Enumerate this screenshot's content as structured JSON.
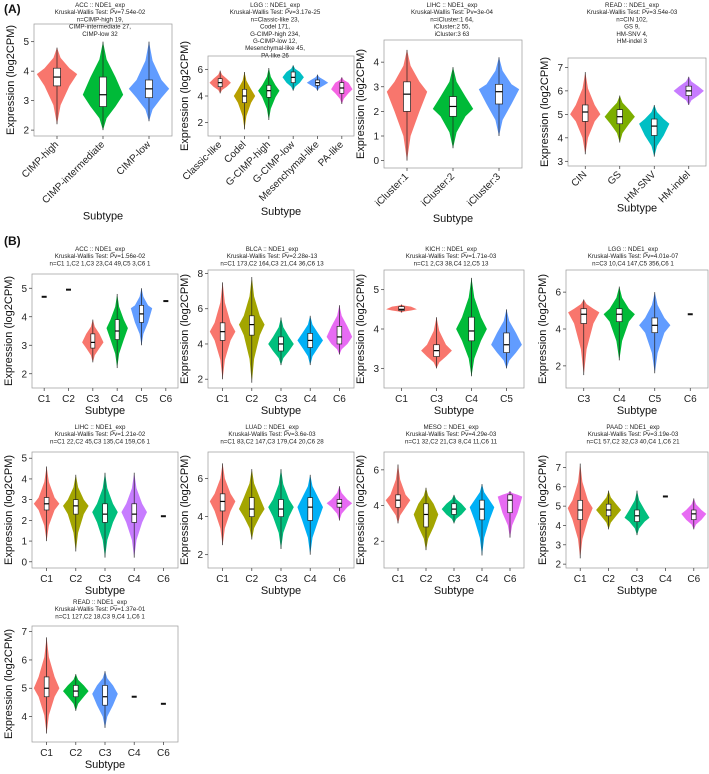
{
  "figure": {
    "panel_labels": [
      "(A)",
      "(B)"
    ],
    "colors": [
      "#F8766D",
      "#A3A500",
      "#00BF7D",
      "#00B0F6",
      "#E76BF3",
      "#FF7F50",
      "#00BFC4"
    ]
  },
  "chart_data": [
    {
      "type": "violin",
      "panel": "A",
      "title_lines": [
        "ACC :: NDE1_exp",
        "Kruskal-Wallis Test: Pv=7.54e-02",
        "n=CIMP-high 19,",
        "CIMP-intermediate 27,",
        "CIMP-low 32"
      ],
      "xlabel": "Subtype",
      "ylabel": "Expression (log2CPM)",
      "ylim": [
        1.8,
        5.6
      ],
      "yticks": [
        2,
        3,
        4,
        5
      ],
      "rotate_x": true,
      "series": [
        {
          "name": "CIMP-high",
          "color": "#F8766D",
          "min": 2.2,
          "q1": 3.5,
          "median": 3.8,
          "q3": 4.1,
          "max": 4.8,
          "mode": 3.9
        },
        {
          "name": "CIMP-intermediate",
          "color": "#00BA38",
          "min": 2.0,
          "q1": 2.8,
          "median": 3.2,
          "q3": 3.8,
          "max": 5.0,
          "mode": 3.2
        },
        {
          "name": "CIMP-low",
          "color": "#619CFF",
          "min": 2.3,
          "q1": 3.1,
          "median": 3.4,
          "q3": 3.7,
          "max": 5.0,
          "mode": 3.4
        }
      ]
    },
    {
      "type": "violin",
      "panel": "A",
      "title_lines": [
        "LGG :: NDE1_exp",
        "Kruskal-Wallis Test: Pv=3.17e-25",
        "n=Classic-like 23,",
        "Codel 171,",
        "G-CIMP-high 234,",
        "G-CIMP-low 12,",
        "Mesenchymal-like 45,",
        "PA-like 26"
      ],
      "xlabel": "Subtype",
      "ylabel": "Expression (log2CPM)",
      "ylim": [
        1.0,
        7.0
      ],
      "yticks": [
        2,
        4,
        6
      ],
      "rotate_x": true,
      "series": [
        {
          "name": "Classic-like",
          "color": "#F8766D",
          "min": 4.2,
          "q1": 4.7,
          "median": 5.0,
          "q3": 5.3,
          "max": 5.9,
          "mode": 5.0
        },
        {
          "name": "Codel",
          "color": "#B79F00",
          "min": 1.5,
          "q1": 3.5,
          "median": 4.0,
          "q3": 4.5,
          "max": 5.8,
          "mode": 4.0
        },
        {
          "name": "G-CIMP-high",
          "color": "#00BA38",
          "min": 2.2,
          "q1": 3.9,
          "median": 4.4,
          "q3": 4.8,
          "max": 6.1,
          "mode": 4.4
        },
        {
          "name": "G-CIMP-low",
          "color": "#00BFC4",
          "min": 4.4,
          "q1": 5.0,
          "median": 5.4,
          "q3": 5.8,
          "max": 6.3,
          "mode": 5.4
        },
        {
          "name": "Mesenchymal-like",
          "color": "#619CFF",
          "min": 4.4,
          "q1": 4.8,
          "median": 5.0,
          "q3": 5.2,
          "max": 5.6,
          "mode": 5.0
        },
        {
          "name": "PA-like",
          "color": "#F564E3",
          "min": 3.4,
          "q1": 4.2,
          "median": 4.6,
          "q3": 5.0,
          "max": 5.4,
          "mode": 4.5
        }
      ]
    },
    {
      "type": "violin",
      "panel": "A",
      "title_lines": [
        "LIHC :: NDE1_exp",
        "Kruskal-Wallis Test: Pv=3e-04",
        "n=iCluster:1 64,",
        "iCluster:2 55,",
        "iCluster:3 63"
      ],
      "xlabel": "Subtype",
      "ylabel": "Expression (log2CPM)",
      "ylim": [
        -0.3,
        4.9
      ],
      "yticks": [
        0,
        1,
        2,
        3,
        4
      ],
      "rotate_x": true,
      "series": [
        {
          "name": "iCluster:1",
          "color": "#F8766D",
          "min": 0.0,
          "q1": 2.0,
          "median": 2.7,
          "q3": 3.2,
          "max": 4.5,
          "mode": 2.8
        },
        {
          "name": "iCluster:2",
          "color": "#00BA38",
          "min": 0.5,
          "q1": 1.8,
          "median": 2.2,
          "q3": 2.6,
          "max": 3.8,
          "mode": 2.1
        },
        {
          "name": "iCluster:3",
          "color": "#619CFF",
          "min": 1.0,
          "q1": 2.3,
          "median": 2.8,
          "q3": 3.1,
          "max": 4.2,
          "mode": 2.9
        }
      ]
    },
    {
      "type": "violin",
      "panel": "A",
      "title_lines": [
        "READ :: NDE1_exp",
        "Kruskal-Wallis Test: Pv=3.54e-03",
        "n=CIN 102,",
        "GS 9,",
        "HM-SNV 4,",
        "HM-indel 3"
      ],
      "xlabel": "Subtype",
      "ylabel": "Expression (log2CPM)",
      "ylim": [
        2.8,
        7.4
      ],
      "yticks": [
        3,
        4,
        5,
        6,
        7
      ],
      "rotate_x": true,
      "series": [
        {
          "name": "CIN",
          "color": "#F8766D",
          "min": 3.3,
          "q1": 4.7,
          "median": 5.1,
          "q3": 5.4,
          "max": 6.8,
          "mode": 5.0
        },
        {
          "name": "GS",
          "color": "#7CAE00",
          "min": 3.8,
          "q1": 4.6,
          "median": 4.9,
          "q3": 5.2,
          "max": 5.8,
          "mode": 4.9
        },
        {
          "name": "HM-SNV",
          "color": "#00BFC4",
          "min": 3.2,
          "q1": 4.1,
          "median": 4.5,
          "q3": 4.8,
          "max": 5.4,
          "mode": 4.6
        },
        {
          "name": "HM-indel",
          "color": "#C77CFF",
          "min": 5.4,
          "q1": 5.8,
          "median": 6.0,
          "q3": 6.2,
          "max": 6.6,
          "mode": 6.0
        }
      ]
    },
    {
      "type": "violin",
      "panel": "B",
      "title_lines": [
        "ACC :: NDE1_exp",
        "Kruskal-Wallis Test: Pv=1.56e-02",
        "n=C1 1,C2 1,C3 23,C4 49,C5 3,C6 1"
      ],
      "xlabel": "Subtype",
      "ylabel": "Expression (log2CPM)",
      "ylim": [
        1.5,
        5.5
      ],
      "yticks": [
        2,
        3,
        4,
        5
      ],
      "rotate_x": false,
      "series": [
        {
          "name": "C1",
          "color": "#F8766D",
          "single": 4.7
        },
        {
          "name": "C2",
          "color": "#B79F00",
          "single": 4.95
        },
        {
          "name": "C3",
          "color": "#F8766D",
          "min": 2.4,
          "q1": 2.9,
          "median": 3.1,
          "q3": 3.4,
          "max": 3.9,
          "mode": 3.1
        },
        {
          "name": "C4",
          "color": "#00BA38",
          "min": 2.2,
          "q1": 3.2,
          "median": 3.5,
          "q3": 3.9,
          "max": 4.8,
          "mode": 3.6
        },
        {
          "name": "C5",
          "color": "#619CFF",
          "min": 3.0,
          "q1": 3.8,
          "median": 4.1,
          "q3": 4.4,
          "max": 5.0,
          "mode": 4.3
        },
        {
          "name": "C6",
          "color": "#F564E3",
          "single": 4.55
        }
      ]
    },
    {
      "type": "violin",
      "panel": "B",
      "title_lines": [
        "BLCA :: NDE1_exp",
        "Kruskal-Wallis Test: Pv=2.28e-13",
        "n=C1 173,C2 164,C3 21,C4 36,C6 13"
      ],
      "xlabel": "Subtype",
      "ylabel": "Expression (log2CPM)",
      "ylim": [
        1.5,
        8.2
      ],
      "yticks": [
        2,
        4,
        6,
        8
      ],
      "rotate_x": false,
      "series": [
        {
          "name": "C1",
          "color": "#F8766D",
          "min": 2.0,
          "q1": 4.2,
          "median": 4.7,
          "q3": 5.2,
          "max": 7.5,
          "mode": 4.7
        },
        {
          "name": "C2",
          "color": "#A3A500",
          "min": 1.8,
          "q1": 4.5,
          "median": 5.1,
          "q3": 5.6,
          "max": 7.8,
          "mode": 5.1
        },
        {
          "name": "C3",
          "color": "#00BF7D",
          "min": 2.8,
          "q1": 3.6,
          "median": 4.0,
          "q3": 4.4,
          "max": 5.5,
          "mode": 4.0
        },
        {
          "name": "C4",
          "color": "#00B0F6",
          "min": 2.8,
          "q1": 3.8,
          "median": 4.2,
          "q3": 4.6,
          "max": 5.6,
          "mode": 4.2
        },
        {
          "name": "C6",
          "color": "#E76BF3",
          "min": 3.4,
          "q1": 4.0,
          "median": 4.4,
          "q3": 5.0,
          "max": 6.2,
          "mode": 4.4
        }
      ]
    },
    {
      "type": "violin",
      "panel": "B",
      "title_lines": [
        "KICH :: NDE1_exp",
        "Kruskal-Wallis Test: Pv=1.71e-03",
        "n=C1 2,C3 38,C4 12,C5 13"
      ],
      "xlabel": "Subtype",
      "ylabel": "Expression (log2CPM)",
      "ylim": [
        2.5,
        5.5
      ],
      "yticks": [
        3,
        4,
        5
      ],
      "rotate_x": false,
      "series": [
        {
          "name": "C1",
          "color": "#F8766D",
          "min": 4.42,
          "q1": 4.47,
          "median": 4.5,
          "q3": 4.57,
          "max": 4.62,
          "mode": 4.5
        },
        {
          "name": "C3",
          "color": "#F8766D",
          "min": 3.0,
          "q1": 3.3,
          "median": 3.45,
          "q3": 3.6,
          "max": 4.3,
          "mode": 3.45
        },
        {
          "name": "C4",
          "color": "#00BA38",
          "min": 2.8,
          "q1": 3.7,
          "median": 3.95,
          "q3": 4.3,
          "max": 5.3,
          "mode": 4.0
        },
        {
          "name": "C5",
          "color": "#619CFF",
          "min": 3.0,
          "q1": 3.4,
          "median": 3.6,
          "q3": 3.9,
          "max": 4.5,
          "mode": 3.6
        }
      ]
    },
    {
      "type": "violin",
      "panel": "B",
      "title_lines": [
        "LGG :: NDE1_exp",
        "Kruskal-Wallis Test: Pv=4.01e-07",
        "n=C3 10,C4 147,C5 356,C6 1"
      ],
      "xlabel": "Subtype",
      "ylabel": "Expression (log2CPM)",
      "ylim": [
        0.8,
        7.2
      ],
      "yticks": [
        2,
        4,
        6
      ],
      "rotate_x": false,
      "series": [
        {
          "name": "C3",
          "color": "#F8766D",
          "min": 1.5,
          "q1": 4.3,
          "median": 4.8,
          "q3": 5.1,
          "max": 5.6,
          "mode": 4.9
        },
        {
          "name": "C4",
          "color": "#00BA38",
          "min": 2.3,
          "q1": 4.4,
          "median": 4.8,
          "q3": 5.1,
          "max": 6.3,
          "mode": 4.8
        },
        {
          "name": "C5",
          "color": "#619CFF",
          "min": 1.6,
          "q1": 3.8,
          "median": 4.2,
          "q3": 4.6,
          "max": 6.0,
          "mode": 4.2
        },
        {
          "name": "C6",
          "color": "#F564E3",
          "single": 4.8
        }
      ]
    },
    {
      "type": "violin",
      "panel": "B",
      "title_lines": [
        "LIHC :: NDE1_exp",
        "Kruskal-Wallis Test: Pv=1.21e-02",
        "n=C1 22,C2 45,C3 135,C4 159,C6 1"
      ],
      "xlabel": "Subtype",
      "ylabel": "Expression (log2CPM)",
      "ylim": [
        -0.3,
        5.3
      ],
      "yticks": [
        0,
        1,
        2,
        3,
        4,
        5
      ],
      "rotate_x": false,
      "series": [
        {
          "name": "C1",
          "color": "#F8766D",
          "min": 1.0,
          "q1": 2.5,
          "median": 2.8,
          "q3": 3.1,
          "max": 4.6,
          "mode": 2.8
        },
        {
          "name": "C2",
          "color": "#A3A500",
          "min": 0.5,
          "q1": 2.3,
          "median": 2.7,
          "q3": 3.0,
          "max": 4.2,
          "mode": 2.7
        },
        {
          "name": "C3",
          "color": "#00BF7D",
          "min": 0.2,
          "q1": 1.9,
          "median": 2.3,
          "q3": 2.8,
          "max": 4.3,
          "mode": 2.4
        },
        {
          "name": "C4",
          "color": "#C77CFF",
          "min": 0.2,
          "q1": 1.9,
          "median": 2.3,
          "q3": 2.8,
          "max": 4.3,
          "mode": 2.4
        },
        {
          "name": "C6",
          "color": "#E76BF3",
          "single": 2.2
        }
      ]
    },
    {
      "type": "violin",
      "panel": "B",
      "title_lines": [
        "LUAD :: NDE1_exp",
        "Kruskal-Wallis Test: Pv=3.6e-03",
        "n=C1 83,C2 147,C3 179,C4 20,C6 28"
      ],
      "xlabel": "Subtype",
      "ylabel": "Expression (log2CPM)",
      "ylim": [
        1.3,
        7.4
      ],
      "yticks": [
        2,
        4,
        6
      ],
      "rotate_x": false,
      "series": [
        {
          "name": "C1",
          "color": "#F8766D",
          "min": 2.5,
          "q1": 4.3,
          "median": 4.8,
          "q3": 5.2,
          "max": 6.8,
          "mode": 4.8
        },
        {
          "name": "C2",
          "color": "#A3A500",
          "min": 2.8,
          "q1": 4.0,
          "median": 4.4,
          "q3": 5.0,
          "max": 6.5,
          "mode": 4.4
        },
        {
          "name": "C3",
          "color": "#00BF7D",
          "min": 2.3,
          "q1": 4.0,
          "median": 4.4,
          "q3": 4.9,
          "max": 6.5,
          "mode": 4.5
        },
        {
          "name": "C4",
          "color": "#00B0F6",
          "min": 2.0,
          "q1": 3.8,
          "median": 4.5,
          "q3": 5.0,
          "max": 6.2,
          "mode": 4.5
        },
        {
          "name": "C6",
          "color": "#E76BF3",
          "min": 3.8,
          "q1": 4.5,
          "median": 4.7,
          "q3": 4.9,
          "max": 5.6,
          "mode": 4.7
        }
      ]
    },
    {
      "type": "violin",
      "panel": "B",
      "title_lines": [
        "MESO :: NDE1_exp",
        "Kruskal-Wallis Test: Pv=4.29e-03",
        "n=C1 32,C2 21,C3 8,C4 11,C6 11"
      ],
      "xlabel": "Subtype",
      "ylabel": "Expression (log2CPM)",
      "ylim": [
        0.5,
        7.0
      ],
      "yticks": [
        2,
        4,
        6
      ],
      "rotate_x": false,
      "series": [
        {
          "name": "C1",
          "color": "#F8766D",
          "min": 3.0,
          "q1": 3.9,
          "median": 4.3,
          "q3": 4.6,
          "max": 6.3,
          "mode": 4.3
        },
        {
          "name": "C2",
          "color": "#A3A500",
          "min": 1.5,
          "q1": 2.8,
          "median": 3.5,
          "q3": 4.1,
          "max": 5.0,
          "mode": 3.5
        },
        {
          "name": "C3",
          "color": "#00BF7D",
          "min": 3.0,
          "q1": 3.5,
          "median": 3.8,
          "q3": 4.1,
          "max": 4.6,
          "mode": 3.8
        },
        {
          "name": "C4",
          "color": "#00B0F6",
          "min": 1.2,
          "q1": 3.2,
          "median": 3.8,
          "q3": 4.3,
          "max": 5.2,
          "mode": 3.9
        },
        {
          "name": "C6",
          "color": "#E76BF3",
          "min": 2.2,
          "q1": 3.6,
          "median": 4.3,
          "q3": 4.6,
          "max": 4.8,
          "mode": 4.5
        }
      ]
    },
    {
      "type": "violin",
      "panel": "B",
      "title_lines": [
        "PAAD :: NDE1_exp",
        "Kruskal-Wallis Test: Pv=3.19e-03",
        "n=C1 57,C2 32,C3 40,C4 1,C6 21"
      ],
      "xlabel": "Subtype",
      "ylabel": "Expression (log2CPM)",
      "ylim": [
        1.8,
        7.8
      ],
      "yticks": [
        2,
        3,
        4,
        5,
        6,
        7
      ],
      "rotate_x": false,
      "series": [
        {
          "name": "C1",
          "color": "#F8766D",
          "min": 2.3,
          "q1": 4.3,
          "median": 4.8,
          "q3": 5.3,
          "max": 7.2,
          "mode": 4.9
        },
        {
          "name": "C2",
          "color": "#A3A500",
          "min": 3.8,
          "q1": 4.5,
          "median": 4.8,
          "q3": 5.1,
          "max": 5.8,
          "mode": 4.8
        },
        {
          "name": "C3",
          "color": "#00BF7D",
          "min": 3.5,
          "q1": 4.2,
          "median": 4.5,
          "q3": 4.8,
          "max": 5.8,
          "mode": 4.4
        },
        {
          "name": "C4",
          "color": "#00B0F6",
          "single": 5.5
        },
        {
          "name": "C6",
          "color": "#E76BF3",
          "min": 3.8,
          "q1": 4.3,
          "median": 4.6,
          "q3": 4.8,
          "max": 5.4,
          "mode": 4.6
        }
      ]
    },
    {
      "type": "violin",
      "panel": "B",
      "title_lines": [
        "READ :: NDE1_exp",
        "Kruskal-Wallis Test: Pv=1.37e-01",
        "n=C1 127,C2 18,C3 9,C4 1,C6 1"
      ],
      "xlabel": "Subtype",
      "ylabel": "Expression (log2CPM)",
      "ylim": [
        3.1,
        7.2
      ],
      "yticks": [
        4,
        5,
        6,
        7
      ],
      "rotate_x": false,
      "series": [
        {
          "name": "C1",
          "color": "#F8766D",
          "min": 3.4,
          "q1": 4.7,
          "median": 5.0,
          "q3": 5.4,
          "max": 6.8,
          "mode": 5.0
        },
        {
          "name": "C2",
          "color": "#00BA38",
          "min": 4.2,
          "q1": 4.7,
          "median": 4.9,
          "q3": 5.1,
          "max": 5.5,
          "mode": 4.9
        },
        {
          "name": "C3",
          "color": "#619CFF",
          "min": 3.6,
          "q1": 4.4,
          "median": 4.7,
          "q3": 5.1,
          "max": 5.6,
          "mode": 4.8
        },
        {
          "name": "C4",
          "color": "#00B0F6",
          "single": 4.7
        },
        {
          "name": "C6",
          "color": "#E76BF3",
          "single": 4.45
        }
      ]
    }
  ]
}
